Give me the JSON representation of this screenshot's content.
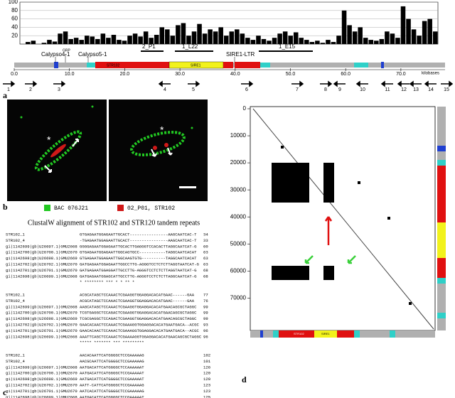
{
  "panel_a": {
    "label": "a",
    "histogram": {
      "ylim": [
        0,
        100
      ],
      "yticks": [
        20,
        40,
        60,
        80,
        100
      ],
      "values": [
        0,
        5,
        8,
        0,
        3,
        10,
        6,
        25,
        30,
        12,
        15,
        10,
        20,
        18,
        12,
        25,
        15,
        22,
        10,
        8,
        20,
        25,
        18,
        30,
        15,
        22,
        40,
        35,
        20,
        45,
        50,
        20,
        30,
        48,
        25,
        35,
        30,
        40,
        20,
        30,
        35,
        25,
        15,
        10,
        20,
        12,
        8,
        15,
        25,
        30,
        20,
        28,
        15,
        10,
        5,
        8,
        3,
        10,
        5,
        20,
        80,
        45,
        30,
        40,
        15,
        10,
        8,
        12,
        30,
        25,
        15,
        90,
        60,
        35,
        20,
        55,
        60,
        30
      ]
    },
    "xticks": [
      {
        "value": 0,
        "label": "0.0"
      },
      {
        "value": 10,
        "label": "10.0"
      },
      {
        "value": 20,
        "label": "20.0"
      },
      {
        "value": 30,
        "label": "30.0"
      },
      {
        "value": 40,
        "label": "40.0"
      },
      {
        "value": 50,
        "label": "50.0"
      },
      {
        "value": 60,
        "label": "60.0"
      },
      {
        "value": 70,
        "label": "70.0"
      }
    ],
    "axis_unit": "kilobases",
    "features": [
      "Calypso4-1",
      "GRP",
      "Calypso5-1",
      "2_P1",
      "1_L22",
      "SIRE1-LTR",
      "1_E15",
      "STR102",
      "SIRE1"
    ],
    "genes": [
      "1",
      "2",
      "3",
      "4",
      "5",
      "6",
      "7",
      "8",
      "9",
      "10",
      "11",
      "12",
      "13",
      "14",
      "15"
    ]
  },
  "panel_b": {
    "label": "b",
    "asterisk": "*",
    "legend": [
      "BAC 076J21",
      "02_P01, STR102"
    ]
  },
  "panel_c": {
    "label": "c",
    "title": "ClustalW alignment of STR102 and STR120 tandem repeats",
    "names": [
      "STR102_1",
      "STR102_4",
      "gi|1142699|gb|U26697.1|GMU2668",
      "gi|1142700|gb|U26700.1|GMU2670",
      "gi|1142698|gb|U26698.1|GMU2669",
      "gi|1142702|gb|U26702.1|GMU2670",
      "gi|1142701|gb|U26701.1|GMU2670",
      "gi|1142698|gb|U26699.1|GMU2668"
    ],
    "blocks": [
      {
        "seqs": [
          "GTGAGAATGGAGAATTGCACT----------------AAGCAATCAC-T",
          "-TGAGAATGGAGAATTGCACT----------------AAGCAATCAC-T",
          "GGGGAGAATGGAGAATTGCACTTGAGGGTCCACACTTAGGCAATCAT-G",
          "GTGAGAATGGAGAATTGGCAGTGCC-----------TAGGCAATCACAT",
          "GTGAGAATGGAGAATTGGCAAGTGTG----------TAGGCAATCACAT",
          "GATGAGAATGGAGAATTGGCCTTG-AGGGTCCTCTCTTAGGTAATCAT-G",
          "GATGAGAATGGAGGATTGCCTTG-AGGGTCCTCTCTTAGGTAATCAT-G",
          "GATGAGAATGGAGCATTGCCTTG-AGGGTCCTCTCTTAGGCAATCAT-G"
        ],
        "positions": [
          34,
          33,
          60,
          63,
          63,
          63,
          68,
          68
        ],
        "conservation": "  * ******** ***             * *   ** *"
      },
      {
        "seqs": [
          "ACGCATAGCTCCAAACTCGAAGGTGGAGGACACATGAAC------GAA",
          "ACGCATAGCTCCAAACTCGAAGGTGGAGGACACATGAAC------GAA",
          "AAGCATAGCTCCAAACTCGAAGGTGGAGGACACATGAACAGCGCTAGGC",
          "TCGTGAGGCTCCAGACTCGAAGGTGGAGGACACATGAACAGCGCTAGGC",
          "TCGCGAGGCTCCAGACTCGAAGGTGGAGGACACATGAACAGCGCTAGGC",
          "GAACACAACTCCAAACTCGAAAGGTGGAGGACACATGAATGACA--ACGC",
          "GAACACAACTCCAAACTCGAAAGGTGGAGGACACATGAATGACA--ACGC",
          "AAATTCAGCTCCAAACTCGAAAAGGTGGAGGACACATGAACAGCGCTAGGC"
        ],
        "positions": [
          77,
          76,
          99,
          99,
          99,
          93,
          96,
          96
        ],
        "conservation": "      ***** ******* ***   *********"
      },
      {
        "seqs": [
          "AACACAATTCATGGGGCTCCGAAAAAG",
          "AACGCAATTCATGGGGCTCCGAAAAAG",
          "AATGACATTCATGGGGCTCCAAAAAAT",
          "AATGACATTCATGGGGCTCCGAAAAAT",
          "AATGACATTCATGGGGCTCCGAAAAAT",
          "AATT-CATTCATGGGGCTCCGAAAAAG",
          "AATCACATTCATGGGGCTCCGAAAAAG",
          "AATGACATTCATGGGGCTCCGAAAAAT"
        ],
        "positions": [
          102,
          101,
          126,
          120,
          120,
          123,
          123,
          125
        ],
        "conservation": "**   ******** ****  ****  *"
      }
    ]
  },
  "panel_d": {
    "label": "d",
    "ylim": [
      0,
      82000
    ],
    "yticks": [
      0,
      10000,
      20000,
      30000,
      40000,
      50000,
      60000,
      70000
    ]
  }
}
